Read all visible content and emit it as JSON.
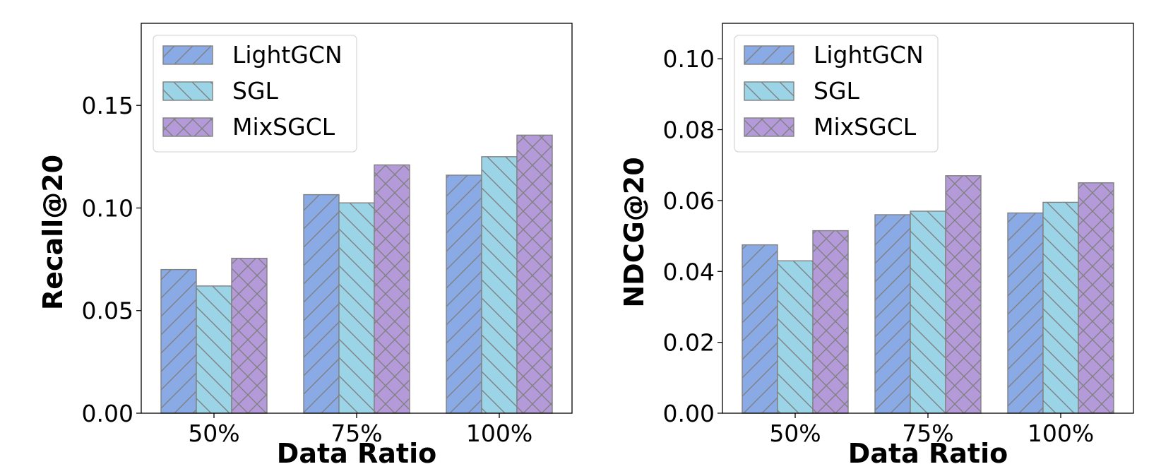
{
  "chart_data": [
    {
      "type": "bar",
      "title": "",
      "xlabel": "Data Ratio",
      "ylabel": "Recall@20",
      "categories": [
        "50%",
        "75%",
        "100%"
      ],
      "ylim": [
        0,
        0.19
      ],
      "yticks": [
        0.0,
        0.05,
        0.1,
        0.15
      ],
      "ytick_labels": [
        "0.00",
        "0.05",
        "0.10",
        "0.15"
      ],
      "grid": false,
      "legend_position": "top-left",
      "series": [
        {
          "name": "LightGCN",
          "values": [
            0.07,
            0.1065,
            0.116
          ],
          "color": "#8aaae6",
          "hatch": "forward"
        },
        {
          "name": "SGL",
          "values": [
            0.062,
            0.1025,
            0.125
          ],
          "color": "#9ad4e6",
          "hatch": "back"
        },
        {
          "name": "MixSGCL",
          "values": [
            0.0755,
            0.121,
            0.1355
          ],
          "color": "#b49ad8",
          "hatch": "cross"
        }
      ]
    },
    {
      "type": "bar",
      "title": "",
      "xlabel": "Data Ratio",
      "ylabel": "NDCG@20",
      "categories": [
        "50%",
        "75%",
        "100%"
      ],
      "ylim": [
        0,
        0.11
      ],
      "yticks": [
        0.0,
        0.02,
        0.04,
        0.06,
        0.08,
        0.1
      ],
      "ytick_labels": [
        "0.00",
        "0.02",
        "0.04",
        "0.06",
        "0.08",
        "0.10"
      ],
      "grid": false,
      "legend_position": "top-left",
      "series": [
        {
          "name": "LightGCN",
          "values": [
            0.0475,
            0.056,
            0.0565
          ],
          "color": "#8aaae6",
          "hatch": "forward"
        },
        {
          "name": "SGL",
          "values": [
            0.043,
            0.057,
            0.0595
          ],
          "color": "#9ad4e6",
          "hatch": "back"
        },
        {
          "name": "MixSGCL",
          "values": [
            0.0515,
            0.067,
            0.065
          ],
          "color": "#b49ad8",
          "hatch": "cross"
        }
      ]
    }
  ]
}
